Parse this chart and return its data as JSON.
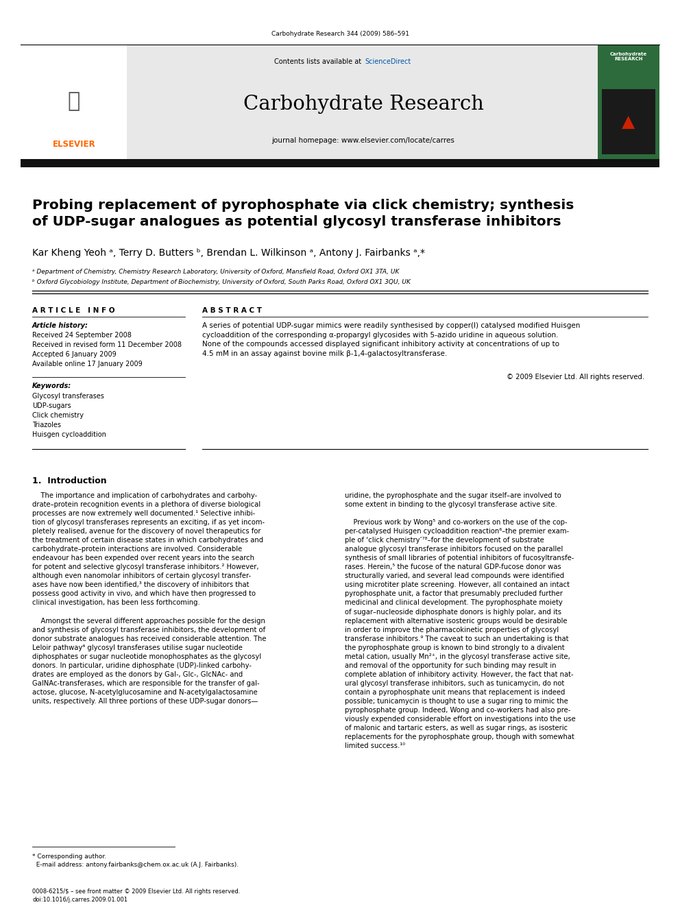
{
  "page_width": 9.92,
  "page_height": 13.23,
  "background": "#ffffff",
  "journal_ref": "Carbohydrate Research 344 (2009) 586–591",
  "header_bg": "#e8e8e8",
  "journal_name": "Carbohydrate Research",
  "journal_homepage": "journal homepage: www.elsevier.com/locate/carres",
  "contents_text": "Contents lists available at ScienceDirect",
  "elsevier_color": "#ff6600",
  "title": "Probing replacement of pyrophosphate via click chemistry; synthesis\nof UDP-sugar analogues as potential glycosyl transferase inhibitors",
  "authors": "Kar Kheng Yeoh ᵃ, Terry D. Butters ᵇ, Brendan L. Wilkinson ᵃ, Antony J. Fairbanks ᵃ,*",
  "affil_a": "ᵃ Department of Chemistry, Chemistry Research Laboratory, University of Oxford, Mansfield Road, Oxford OX1 3TA, UK",
  "affil_b": "ᵇ Oxford Glycobiology Institute, Department of Biochemistry, University of Oxford, South Parks Road, Oxford OX1 3QU, UK",
  "article_info_label": "A R T I C L E   I N F O",
  "abstract_label": "A B S T R A C T",
  "article_history_label": "Article history:",
  "received1": "Received 24 September 2008",
  "received2": "Received in revised form 11 December 2008",
  "accepted": "Accepted 6 January 2009",
  "available": "Available online 17 January 2009",
  "keywords_label": "Keywords:",
  "keywords": [
    "Glycosyl transferases",
    "UDP-sugars",
    "Click chemistry",
    "Triazoles",
    "Huisgen cycloaddition"
  ],
  "abstract_text": "A series of potential UDP-sugar mimics were readily synthesised by copper(I) catalysed modified Huisgen cycloaddition of the corresponding α-propargyl glycosides with 5-azido uridine in aqueous solution. None of the compounds accessed displayed significant inhibitory activity at concentrations of up to 4.5 mM in an assay against bovine milk β-1,4-galactosyltransferase.",
  "copyright": "© 2009 Elsevier Ltd. All rights reserved.",
  "intro_heading": "1.  Introduction",
  "footnote": "* Corresponding author.\n  E-mail address: antony.fairbanks@chem.ox.ac.uk (A.J. Fairbanks).",
  "bottom_ref": "0008-6215/$ – see front matter © 2009 Elsevier Ltd. All rights reserved.\ndoi:10.1016/j.carres.2009.01.001"
}
